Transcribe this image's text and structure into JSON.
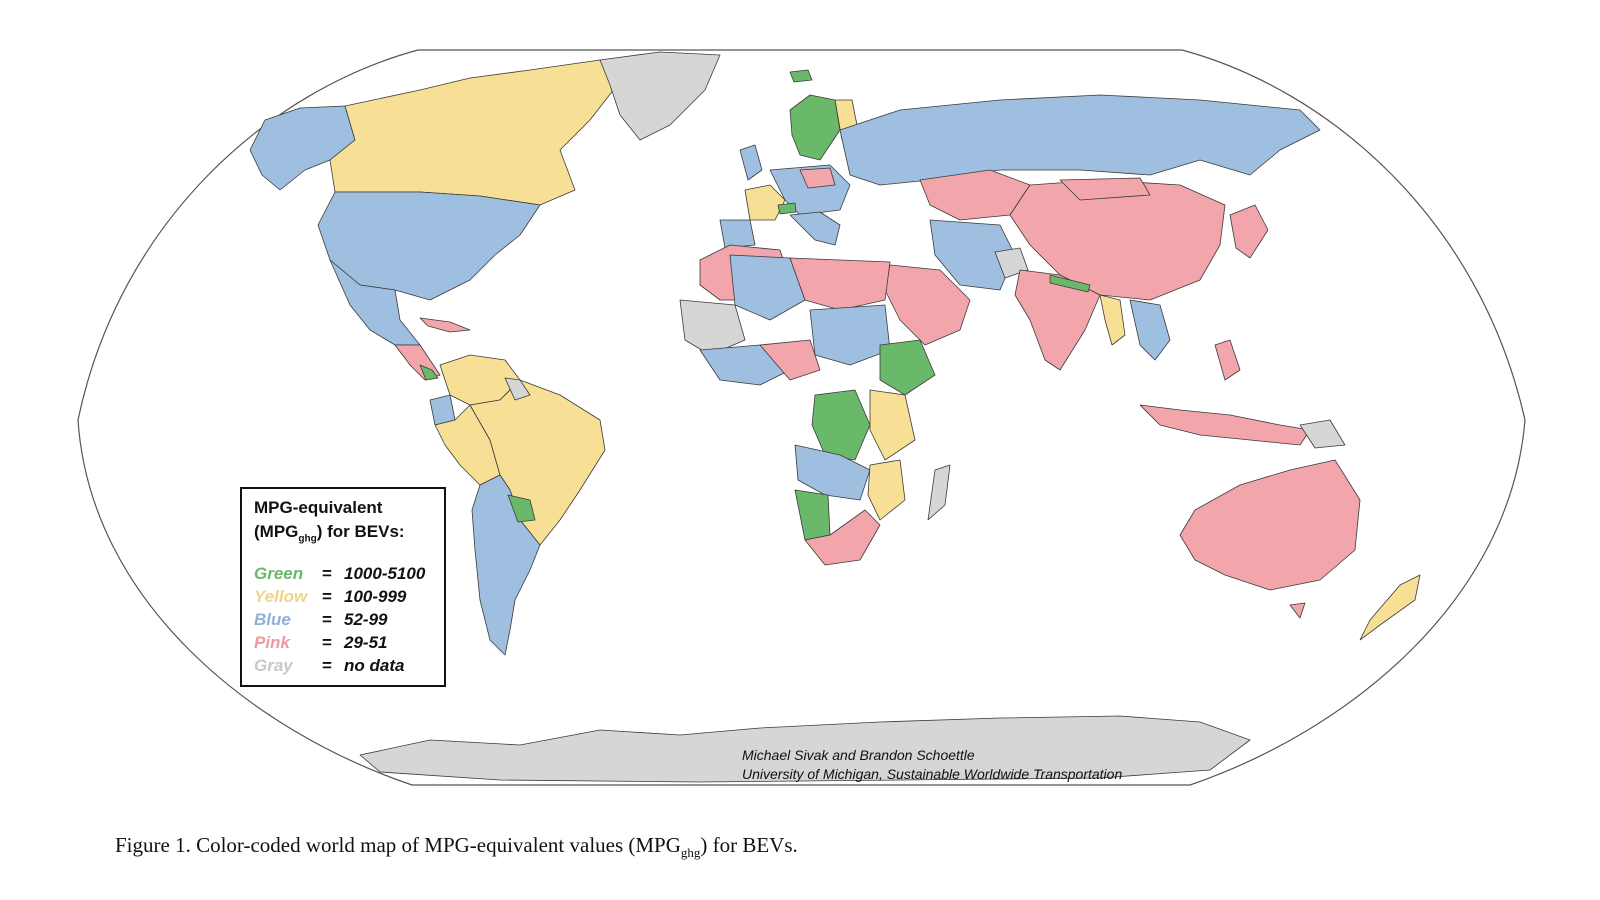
{
  "legend": {
    "title": "MPG-equivalent",
    "subtitle_prefix": "(MPG",
    "subtitle_sub": "ghg",
    "subtitle_suffix": ") for BEVs:",
    "items": [
      {
        "label": "Green",
        "range": "1000-5100",
        "color": "#6ab86a"
      },
      {
        "label": "Yellow",
        "range": "100-999",
        "color": "#f7df95"
      },
      {
        "label": "Blue",
        "range": "52-99",
        "color": "#9fbfe0"
      },
      {
        "label": "Pink",
        "range": "29-51",
        "color": "#f3a5ac"
      },
      {
        "label": "Gray",
        "range": "no data",
        "color": "#d6d6d6"
      }
    ]
  },
  "credits": {
    "line1": "Michael Sivak and Brandon Schoettle",
    "line2": "University of Michigan, Sustainable Worldwide Transportation"
  },
  "caption": {
    "prefix": "Figure 1.  Color-coded world map of MPG-equivalent values (MPG",
    "sub": "ghg",
    "suffix": ") for BEVs."
  },
  "colors": {
    "green": "#6ab86a",
    "yellow": "#f7df95",
    "blue": "#9fbfe0",
    "pink": "#f3a5ac",
    "gray": "#d6d6d6"
  }
}
